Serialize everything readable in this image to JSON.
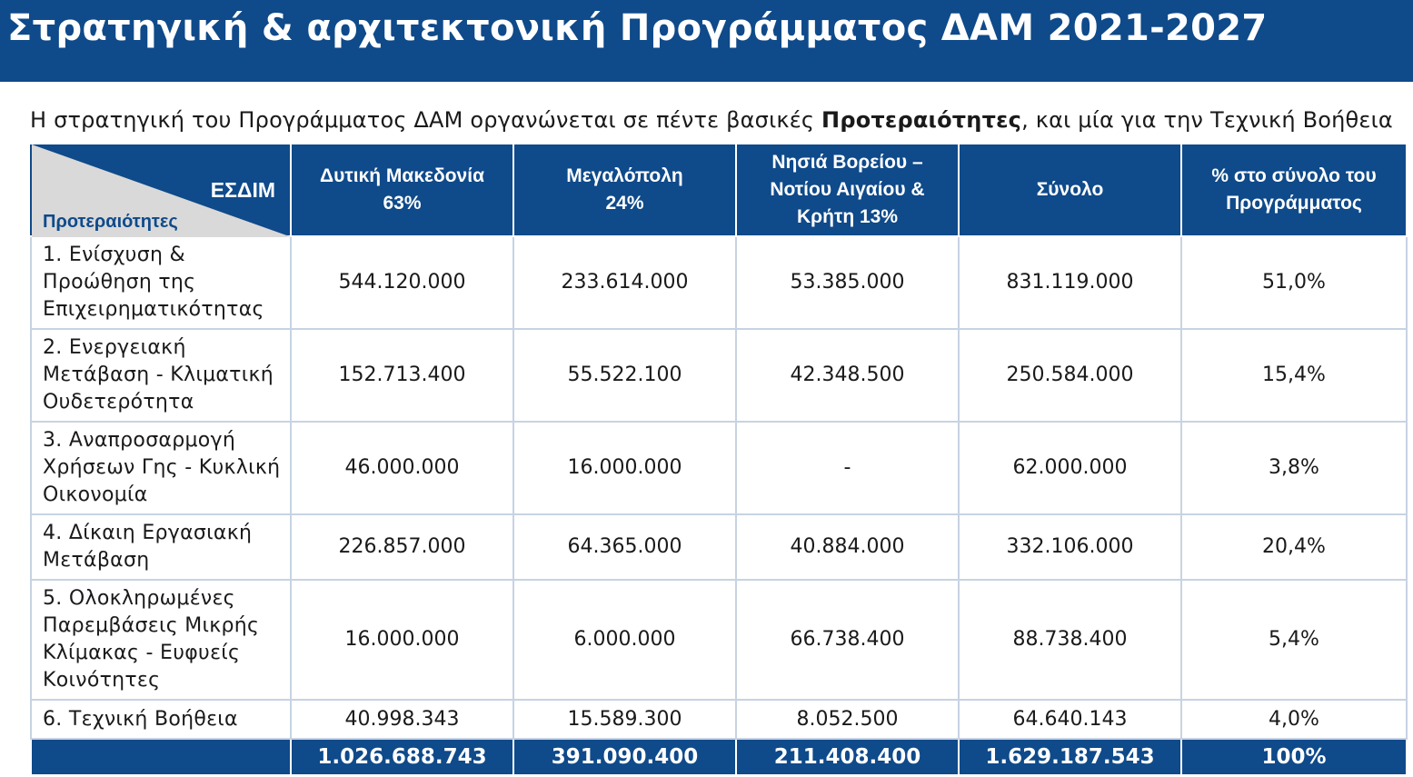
{
  "title": "Στρατηγική & αρχιτεκτονική Προγράμματος ΔΑΜ 2021-2027",
  "intro": {
    "before": "Η στρατηγική του Προγράμματος ΔΑΜ οργανώνεται σε πέντε βασικές ",
    "bold": "Προτεραιότητες",
    "after": ", και μία για την Τεχνική Βοήθεια"
  },
  "table": {
    "corner_top": "ΕΣΔΙΜ",
    "corner_bottom": "Προτεραιότητες",
    "headers": [
      [
        "Δυτική Μακεδονία",
        "63%"
      ],
      [
        "Μεγαλόπολη",
        "24%"
      ],
      [
        "Νησιά Βορείου –",
        "Νοτίου Αιγαίου &",
        "Κρήτη  13%"
      ],
      [
        "Σύνολο"
      ],
      [
        "% στο σύνολο του",
        "Προγράμματος"
      ]
    ],
    "rows": [
      {
        "label": [
          "1. Ενίσχυση &",
          "Προώθηση της",
          "Επιχειρηματικότητας"
        ],
        "values": [
          "544.120.000",
          "233.614.000",
          "53.385.000",
          "831.119.000",
          "51,0%"
        ]
      },
      {
        "label": [
          "2. Ενεργειακή",
          "Μετάβαση - Κλιματική",
          "Ουδετερότητα"
        ],
        "values": [
          "152.713.400",
          "55.522.100",
          "42.348.500",
          "250.584.000",
          "15,4%"
        ]
      },
      {
        "label": [
          "3. Αναπροσαρμογή",
          "Χρήσεων Γης - Κυκλική",
          "Οικονομία"
        ],
        "values": [
          "46.000.000",
          "16.000.000",
          "-",
          "62.000.000",
          "3,8%"
        ]
      },
      {
        "label": [
          "4. Δίκαιη Εργασιακή",
          "Μετάβαση"
        ],
        "values": [
          "226.857.000",
          "64.365.000",
          "40.884.000",
          "332.106.000",
          "20,4%"
        ]
      },
      {
        "label": [
          "5. Ολοκληρωμένες",
          "Παρεμβάσεις Μικρής",
          "Κλίμακας - Ευφυείς",
          "Κοινότητες"
        ],
        "values": [
          "16.000.000",
          "6.000.000",
          "66.738.400",
          "88.738.400",
          "5,4%"
        ]
      },
      {
        "label": [
          "6. Τεχνική Βοήθεια"
        ],
        "values": [
          "40.998.343",
          "15.589.300",
          "8.052.500",
          "64.640.143",
          "4,0%"
        ]
      }
    ],
    "totals": [
      "1.026.688.743",
      "391.090.400",
      "211.408.400",
      "1.629.187.543",
      "100%"
    ]
  },
  "colors": {
    "header_bg": "#0f4a8a",
    "corner_triangle": "#d9d9d9",
    "grid": "#c7d3e2"
  }
}
